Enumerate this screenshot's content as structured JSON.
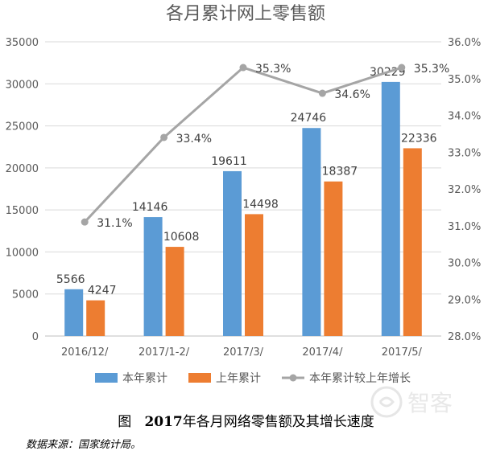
{
  "chart_data": {
    "type": "bar",
    "title": "各月累计网上零售额",
    "categories": [
      "2016/12/",
      "2017/1-2/",
      "2017/3/",
      "2017/4/",
      "2017/5/"
    ],
    "series": [
      {
        "name": "本年累计",
        "type": "bar",
        "axis": "left",
        "color": "#5B9BD5",
        "values": [
          5566,
          14146,
          19611,
          24746,
          30229
        ],
        "labels": [
          "5566",
          "14146",
          "19611",
          "24746",
          "30229"
        ]
      },
      {
        "name": "上年累计",
        "type": "bar",
        "axis": "left",
        "color": "#ED7D31",
        "values": [
          4247,
          10608,
          14498,
          18387,
          22336
        ],
        "labels": [
          "4247",
          "10608",
          "14498",
          "18387",
          "22336"
        ]
      },
      {
        "name": "本年累计较上年增长",
        "type": "line",
        "axis": "right",
        "color": "#A5A5A5",
        "values": [
          31.1,
          33.4,
          35.3,
          34.6,
          35.3
        ],
        "labels": [
          "31.1%",
          "33.4%",
          "35.3%",
          "34.6%",
          "35.3%"
        ]
      }
    ],
    "y_left": {
      "min": 0,
      "max": 35000,
      "step": 5000,
      "ticks": [
        "0",
        "5000",
        "10000",
        "15000",
        "20000",
        "25000",
        "30000",
        "35000"
      ]
    },
    "y_right": {
      "min": 28.0,
      "max": 36.0,
      "step": 1.0,
      "ticks": [
        "28.0%",
        "29.0%",
        "30.0%",
        "31.0%",
        "32.0%",
        "33.0%",
        "34.0%",
        "35.0%",
        "36.0%"
      ]
    },
    "grid": true,
    "legend_position": "bottom"
  },
  "caption": {
    "prefix": "图",
    "year": "2017",
    "text": "年各月网络零售额及其增长速度"
  },
  "source": "数据来源：国家统计局。",
  "watermark": "智客"
}
